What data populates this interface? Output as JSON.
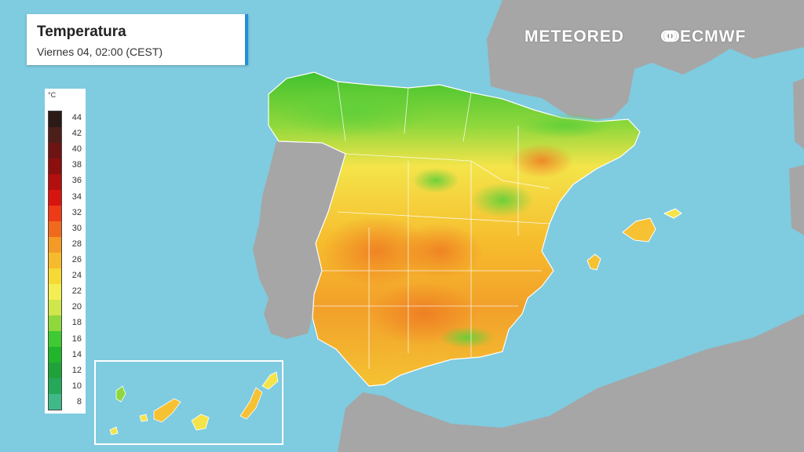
{
  "header": {
    "title": "Temperatura",
    "subtitle": "Viernes 04, 02:00 (CEST)"
  },
  "legend": {
    "unit": "°C",
    "labels": [
      "44",
      "42",
      "40",
      "38",
      "36",
      "34",
      "32",
      "30",
      "28",
      "26",
      "24",
      "22",
      "20",
      "18",
      "16",
      "14",
      "12",
      "10",
      "8"
    ],
    "colors": [
      "#2b1a16",
      "#4d1f1a",
      "#6e1414",
      "#8c0f0f",
      "#b30f0f",
      "#d8140f",
      "#ef3a17",
      "#ef6a1d",
      "#f39b26",
      "#f6bb2d",
      "#f6d935",
      "#f4ee52",
      "#cfe64c",
      "#8fd83c",
      "#3fc933",
      "#21b52c",
      "#1fa23a",
      "#25a85a",
      "#3fb988"
    ]
  },
  "brands": {
    "meteored": "METEORED",
    "ecmwf": "ECMWF"
  },
  "colors": {
    "sea": "#7fcbe0",
    "land_other": "#a6a6a6",
    "region_border": "#ffffff"
  }
}
